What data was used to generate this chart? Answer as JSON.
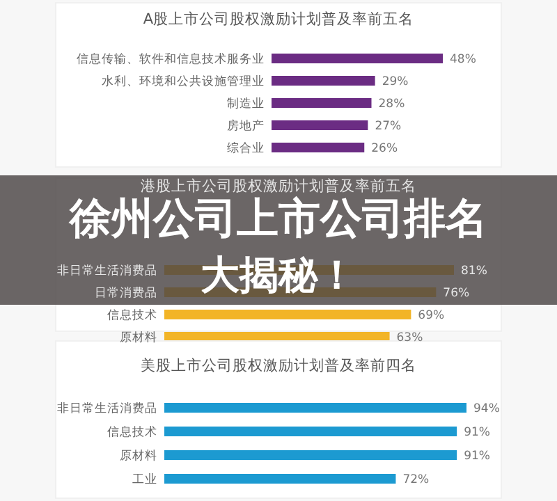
{
  "chart_data": [
    {
      "type": "bar",
      "orientation": "horizontal",
      "title": "A股上市公司股权激励计划普及率前五名",
      "categories": [
        "信息传输、软件和信息技术服务业",
        "水利、环境和公共设施管理业",
        "制造业",
        "房地产",
        "综合业"
      ],
      "values": [
        48,
        29,
        28,
        27,
        26
      ],
      "color": "#6b2c83",
      "data_labels": true,
      "value_labels": [
        "48%",
        "29%",
        "28%",
        "27%",
        "26%"
      ]
    },
    {
      "type": "bar",
      "orientation": "horizontal",
      "title": "港股上市公司股权激励计划普及率前五名",
      "categories": [
        null,
        "非日常生活消费品",
        "日常消费品",
        "信息技术",
        "原材料"
      ],
      "values": [
        null,
        81,
        76,
        69,
        63
      ],
      "color": "#f2b427",
      "data_labels": true,
      "value_labels": [
        null,
        "81%",
        "76%",
        "69%",
        "63%"
      ]
    },
    {
      "type": "bar",
      "orientation": "horizontal",
      "title": "美股上市公司股权激励计划普及率前四名",
      "categories": [
        "非日常生活消费品",
        "信息技术",
        "原材料",
        "工业"
      ],
      "values": [
        94,
        91,
        91,
        72
      ],
      "color": "#1c9ad1",
      "data_labels": true,
      "value_labels": [
        "94%",
        "91%",
        "91%",
        "72%"
      ]
    },
    {
      "type": "other",
      "title": "徐州公司上市公司排名",
      "subtitle": "大揭秘！"
    }
  ]
}
